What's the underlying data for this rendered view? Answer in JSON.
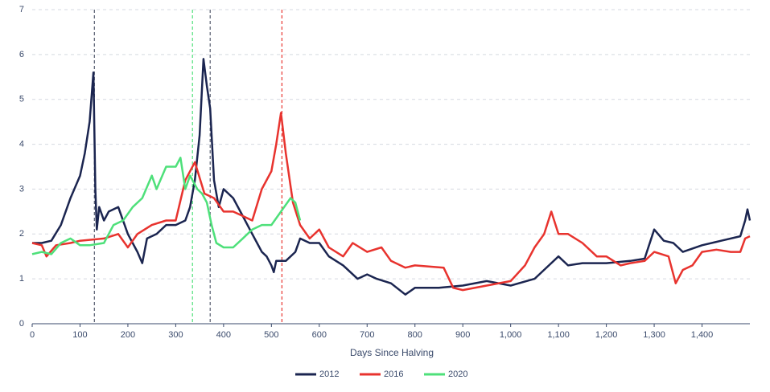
{
  "chart_data": {
    "type": "line",
    "x_label": "Days Since Halving",
    "xlim": [
      0,
      1500
    ],
    "ylim": [
      0,
      7
    ],
    "xticks": [
      0,
      100,
      200,
      300,
      400,
      500,
      600,
      700,
      800,
      900,
      {
        "value": 1000,
        "label": "1,000"
      },
      {
        "value": 1100,
        "label": "1,100"
      },
      {
        "value": 1200,
        "label": "1,200"
      },
      {
        "value": 1300,
        "label": "1,300"
      },
      {
        "value": 1400,
        "label": "1,400"
      }
    ],
    "yticks": [
      0,
      1,
      2,
      3,
      4,
      5,
      6,
      7
    ],
    "grid": true,
    "vlines": [
      {
        "x": 130,
        "color": "#555b6e"
      },
      {
        "x": 335,
        "color": "#4ee07a"
      },
      {
        "x": 372,
        "color": "#555b6e"
      },
      {
        "x": 522,
        "color": "#e8332e"
      }
    ],
    "series": [
      {
        "name": "2012",
        "color": "#1b2550",
        "x": [
          0,
          20,
          40,
          60,
          80,
          100,
          110,
          120,
          128,
          132,
          135,
          140,
          150,
          160,
          180,
          200,
          220,
          230,
          240,
          260,
          280,
          300,
          320,
          330,
          340,
          350,
          358,
          365,
          372,
          380,
          390,
          400,
          420,
          440,
          460,
          470,
          480,
          490,
          500,
          505,
          510,
          530,
          550,
          560,
          580,
          600,
          620,
          650,
          680,
          700,
          720,
          750,
          780,
          800,
          850,
          900,
          950,
          1000,
          1050,
          1080,
          1100,
          1120,
          1150,
          1200,
          1250,
          1280,
          1300,
          1320,
          1340,
          1360,
          1400,
          1440,
          1480,
          1490,
          1495,
          1500
        ],
        "values": [
          1.8,
          1.8,
          1.85,
          2.2,
          2.8,
          3.3,
          3.8,
          4.5,
          5.6,
          3.0,
          2.1,
          2.6,
          2.3,
          2.5,
          2.6,
          2.0,
          1.6,
          1.35,
          1.9,
          2.0,
          2.2,
          2.2,
          2.3,
          2.6,
          3.2,
          4.2,
          5.9,
          5.3,
          4.8,
          3.2,
          2.6,
          3.0,
          2.8,
          2.4,
          2.0,
          1.8,
          1.6,
          1.5,
          1.3,
          1.15,
          1.4,
          1.4,
          1.6,
          1.9,
          1.8,
          1.8,
          1.5,
          1.3,
          1.0,
          1.1,
          1.0,
          0.9,
          0.65,
          0.8,
          0.8,
          0.85,
          0.95,
          0.85,
          1.0,
          1.3,
          1.5,
          1.3,
          1.35,
          1.35,
          1.4,
          1.45,
          2.1,
          1.85,
          1.8,
          1.6,
          1.75,
          1.85,
          1.95,
          2.3,
          2.55,
          2.3
        ]
      },
      {
        "name": "2016",
        "color": "#e8332e",
        "x": [
          0,
          20,
          30,
          50,
          80,
          100,
          150,
          180,
          200,
          220,
          250,
          280,
          300,
          320,
          340,
          360,
          380,
          400,
          420,
          440,
          460,
          480,
          500,
          510,
          520,
          530,
          545,
          560,
          580,
          600,
          620,
          650,
          670,
          700,
          730,
          750,
          780,
          800,
          860,
          880,
          900,
          950,
          1000,
          1030,
          1050,
          1070,
          1085,
          1100,
          1120,
          1150,
          1180,
          1200,
          1230,
          1250,
          1280,
          1300,
          1330,
          1345,
          1360,
          1380,
          1400,
          1430,
          1460,
          1480,
          1490,
          1500
        ],
        "values": [
          1.8,
          1.75,
          1.5,
          1.75,
          1.8,
          1.85,
          1.9,
          2.0,
          1.7,
          2.0,
          2.2,
          2.3,
          2.3,
          3.2,
          3.6,
          2.9,
          2.8,
          2.5,
          2.5,
          2.4,
          2.3,
          3.0,
          3.4,
          4.0,
          4.7,
          3.8,
          2.7,
          2.2,
          1.9,
          2.1,
          1.7,
          1.5,
          1.8,
          1.6,
          1.7,
          1.4,
          1.25,
          1.3,
          1.25,
          0.8,
          0.75,
          0.85,
          0.95,
          1.3,
          1.7,
          2.0,
          2.5,
          2.0,
          2.0,
          1.8,
          1.5,
          1.5,
          1.3,
          1.35,
          1.4,
          1.6,
          1.5,
          0.9,
          1.2,
          1.3,
          1.6,
          1.65,
          1.6,
          1.6,
          1.9,
          1.95
        ]
      },
      {
        "name": "2020",
        "color": "#4ee07a",
        "x": [
          0,
          20,
          40,
          60,
          80,
          100,
          120,
          150,
          170,
          190,
          210,
          230,
          250,
          260,
          280,
          300,
          310,
          320,
          330,
          345,
          355,
          365,
          375,
          385,
          400,
          420,
          440,
          460,
          480,
          500,
          520,
          540,
          550,
          560
        ],
        "values": [
          1.55,
          1.6,
          1.55,
          1.8,
          1.9,
          1.75,
          1.75,
          1.8,
          2.2,
          2.3,
          2.6,
          2.8,
          3.3,
          3.0,
          3.5,
          3.5,
          3.7,
          3.0,
          3.3,
          3.0,
          2.9,
          2.7,
          2.2,
          1.8,
          1.7,
          1.7,
          1.9,
          2.1,
          2.2,
          2.2,
          2.5,
          2.8,
          2.7,
          2.3
        ]
      }
    ]
  }
}
